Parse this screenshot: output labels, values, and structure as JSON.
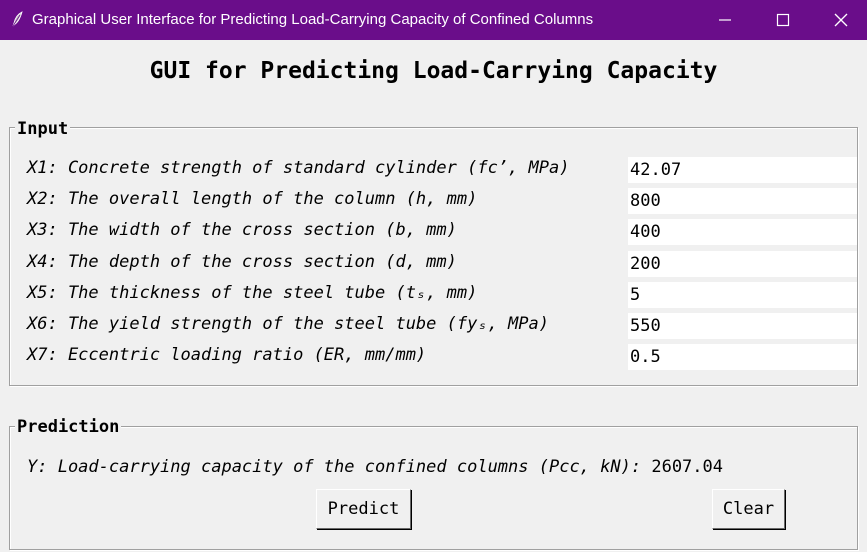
{
  "window": {
    "title": "Graphical User Interface for Predicting Load-Carrying Capacity of Confined Columns",
    "controls": [
      "minimize-icon",
      "maximize-icon",
      "close-icon"
    ]
  },
  "heading": "GUI for Predicting Load-Carrying Capacity",
  "input_frame": {
    "legend": "Input",
    "fields": [
      {
        "label": "X1: Concrete strength of standard cylinder (fc’, MPa)",
        "value": "42.07"
      },
      {
        "label": "X2: The overall length of the column (h, mm)",
        "value": "800"
      },
      {
        "label": "X3: The width of the cross section (b, mm)",
        "value": "400"
      },
      {
        "label": "X4: The depth of the cross section (d, mm)",
        "value": "200"
      },
      {
        "label": "X5: The thickness of the steel tube (tₛ, mm)",
        "value": "5"
      },
      {
        "label": "X6: The yield strength of the steel tube (fyₛ, MPa)",
        "value": "550"
      },
      {
        "label": "X7: Eccentric loading ratio (ER, mm/mm)",
        "value": "0.5"
      }
    ]
  },
  "prediction_frame": {
    "legend": "Prediction",
    "result_label": "Y: Load-carrying capacity of the confined columns (Pcc, kN):",
    "result_value": "2607.04",
    "predict_label": "Predict",
    "clear_label": "Clear"
  },
  "colors": {
    "titlebar": "#6a0d8a",
    "background": "#f0f0f0",
    "entry_background": "#ffffff"
  }
}
